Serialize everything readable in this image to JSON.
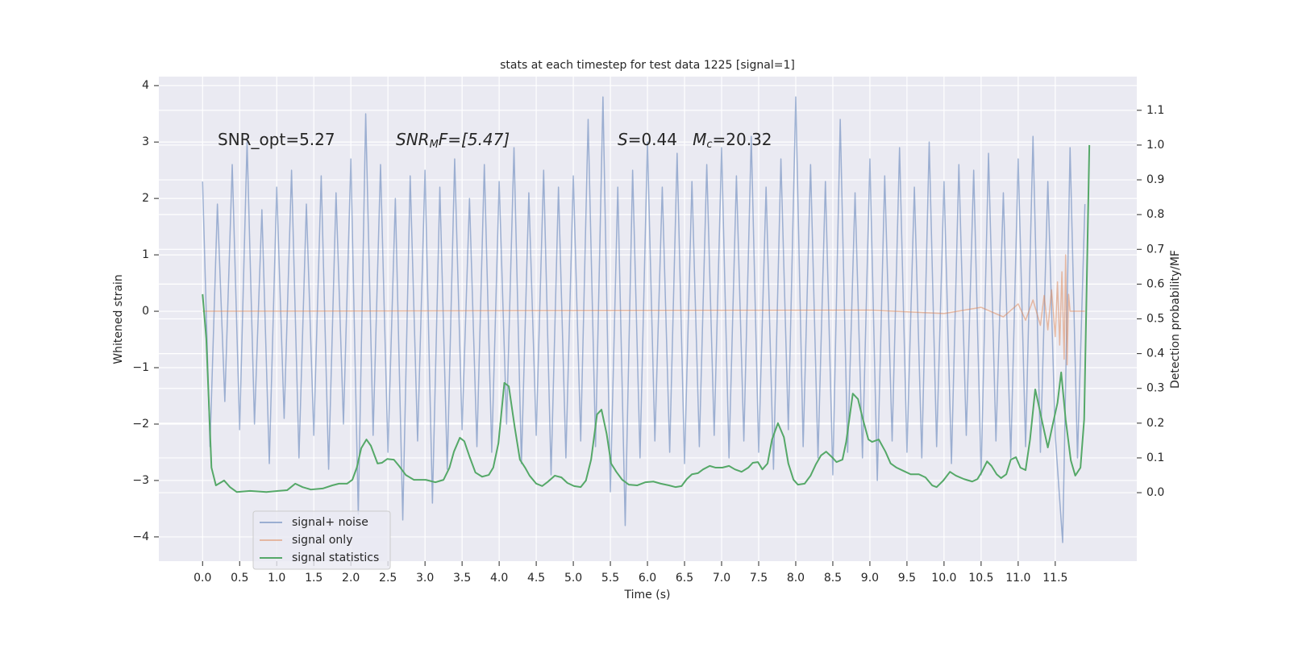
{
  "chart_data": {
    "type": "line",
    "title": "stats at each timestep for test data 1225 [signal=1]",
    "x_label": "Time (s)",
    "y_label": "Whitened strain",
    "y2_label": "Detection probability/MF",
    "annotations": [
      [
        "SNR_opt=5.27"
      ],
      [
        "SNR",
        "M",
        "F=[5.47]"
      ],
      [
        "S",
        "=0.44   ",
        "M",
        "c",
        "=20.32"
      ]
    ],
    "grid": true,
    "legend": "lower left",
    "xlim": [
      -0.59,
      12.6
    ],
    "ylim": [
      -4.43,
      4.16
    ],
    "y2lim": [
      -0.197,
      1.197
    ],
    "xticks": [
      {
        "value": 0,
        "label": "0.0"
      },
      0.5,
      {
        "value": 1,
        "label": "1.0"
      },
      1.5,
      {
        "value": 2,
        "label": "2.0"
      },
      2.5,
      {
        "value": 3,
        "label": "3.0"
      },
      3.5,
      {
        "value": 4,
        "label": "4.0"
      },
      4.5,
      {
        "value": 5,
        "label": "5.0"
      },
      5.5,
      {
        "value": 6,
        "label": "6.0"
      },
      6.5,
      {
        "value": 7,
        "label": "7.0"
      },
      7.5,
      {
        "value": 8,
        "label": "8.0"
      },
      8.5,
      {
        "value": 9,
        "label": "9.0"
      },
      9.5,
      {
        "value": 10,
        "label": "10.0"
      },
      10.5,
      {
        "value": 11,
        "label": "11.0"
      },
      11.5
    ],
    "yticks": [
      {
        "value": -4,
        "label": "−4"
      },
      {
        "value": -3,
        "label": "−3"
      },
      {
        "value": -2,
        "label": "−2"
      },
      {
        "value": -1,
        "label": "−1"
      },
      0,
      1,
      2,
      3,
      4
    ],
    "y2ticks": [
      {
        "value": 0,
        "label": "0.0"
      },
      0.1,
      0.2,
      0.3,
      0.4,
      0.5,
      0.6,
      0.7,
      0.8,
      0.9,
      {
        "value": 1,
        "label": "1.0"
      },
      1.1
    ],
    "series": [
      {
        "name": "signal+ noise",
        "color": "#4c72b0",
        "opacity": 0.5,
        "x": [
          0,
          0.1,
          0.2,
          0.3,
          0.4,
          0.5,
          0.6,
          0.7,
          0.8,
          0.9,
          1,
          1.1,
          1.2,
          1.3,
          1.4,
          1.5,
          1.6,
          1.7,
          1.8,
          1.9,
          2,
          2.1,
          2.2,
          2.3,
          2.4,
          2.5,
          2.6,
          2.7,
          2.8,
          2.9,
          3,
          3.1,
          3.2,
          3.3,
          3.4,
          3.5,
          3.6,
          3.7,
          3.8,
          3.9,
          4,
          4.1,
          4.2,
          4.3,
          4.4,
          4.5,
          4.6,
          4.7,
          4.8,
          4.9,
          5,
          5.1,
          5.2,
          5.3,
          5.4,
          5.5,
          5.6,
          5.7,
          5.8,
          5.9,
          6,
          6.1,
          6.2,
          6.3,
          6.4,
          6.5,
          6.6,
          6.7,
          6.8,
          6.9,
          7,
          7.1,
          7.2,
          7.3,
          7.4,
          7.5,
          7.6,
          7.7,
          7.8,
          7.9,
          8,
          8.1,
          8.2,
          8.3,
          8.4,
          8.5,
          8.6,
          8.7,
          8.8,
          8.9,
          9,
          9.1,
          9.2,
          9.3,
          9.4,
          9.5,
          9.6,
          9.7,
          9.8,
          9.9,
          10,
          10.1,
          10.2,
          10.3,
          10.4,
          10.5,
          10.6,
          10.7,
          10.8,
          10.9,
          11,
          11.1,
          11.2,
          11.3,
          11.4,
          11.5,
          11.6,
          11.7,
          11.8,
          11.9
        ],
        "values": [
          2.3,
          -2.4,
          1.9,
          -1.6,
          2.6,
          -2.1,
          3.0,
          -2.0,
          1.8,
          -2.7,
          2.2,
          -1.9,
          2.5,
          -2.6,
          1.9,
          -2.2,
          2.4,
          -2.8,
          2.1,
          -2.0,
          2.7,
          -3.6,
          3.5,
          -2.2,
          2.6,
          -2.5,
          2.0,
          -3.7,
          2.4,
          -2.3,
          2.5,
          -3.4,
          2.2,
          -2.8,
          2.7,
          -2.1,
          2.0,
          -2.4,
          2.6,
          -2.5,
          2.3,
          -2.0,
          2.9,
          -2.7,
          2.1,
          -2.2,
          2.5,
          -2.9,
          2.2,
          -2.6,
          2.4,
          -2.3,
          3.4,
          -2.4,
          3.8,
          -3.2,
          2.2,
          -3.8,
          2.5,
          -2.6,
          3.0,
          -2.3,
          2.2,
          -2.5,
          2.8,
          -2.7,
          2.3,
          -2.4,
          2.6,
          -2.2,
          2.9,
          -2.6,
          2.4,
          -2.3,
          3.1,
          -2.5,
          2.2,
          -2.8,
          2.7,
          -2.1,
          3.8,
          -2.4,
          2.6,
          -2.6,
          2.3,
          -2.9,
          3.4,
          -2.5,
          2.1,
          -2.6,
          2.7,
          -3.0,
          2.4,
          -2.3,
          2.9,
          -2.5,
          2.2,
          -2.6,
          3.0,
          -2.4,
          2.3,
          -2.7,
          2.6,
          -2.2,
          2.5,
          -2.9,
          2.8,
          -2.3,
          2.1,
          -2.6,
          2.7,
          -2.4,
          3.1,
          -2.5,
          2.3,
          -2.2,
          -4.1,
          2.9,
          -2.6,
          1.9
        ]
      },
      {
        "name": "signal only",
        "color": "#dd8452",
        "opacity": 0.5,
        "x": [
          0,
          9.0,
          10.0,
          10.5,
          10.8,
          11.0,
          11.1,
          11.2,
          11.3,
          11.35,
          11.4,
          11.45,
          11.5,
          11.53,
          11.56,
          11.59,
          11.62,
          11.64,
          11.66,
          11.68,
          11.7,
          11.9
        ],
        "values": [
          0,
          0.02,
          -0.04,
          0.07,
          -0.1,
          0.13,
          -0.16,
          0.2,
          -0.25,
          0.28,
          -0.33,
          0.38,
          -0.45,
          0.52,
          -0.6,
          0.7,
          -0.85,
          1.0,
          -0.95,
          0.3,
          0,
          0
        ]
      },
      {
        "name": "signal statistics",
        "color": "#55a868",
        "opacity": 1,
        "axis": "y2",
        "x": [
          0,
          0.05,
          0.12,
          0.18,
          0.29,
          0.37,
          0.46,
          0.64,
          0.86,
          1.02,
          1.14,
          1.25,
          1.35,
          1.46,
          1.62,
          1.75,
          1.84,
          1.95,
          2.02,
          2.08,
          2.14,
          2.21,
          2.27,
          2.36,
          2.42,
          2.49,
          2.58,
          2.65,
          2.74,
          2.85,
          3.01,
          3.14,
          3.25,
          3.33,
          3.39,
          3.47,
          3.53,
          3.6,
          3.68,
          3.77,
          3.86,
          3.92,
          3.99,
          4.07,
          4.13,
          4.21,
          4.28,
          4.35,
          4.41,
          4.5,
          4.58,
          4.66,
          4.75,
          4.84,
          4.92,
          5.01,
          5.1,
          5.17,
          5.24,
          5.32,
          5.38,
          5.45,
          5.51,
          5.58,
          5.66,
          5.75,
          5.86,
          5.97,
          6.08,
          6.18,
          6.29,
          6.38,
          6.46,
          6.53,
          6.6,
          6.68,
          6.75,
          6.84,
          6.92,
          7.01,
          7.1,
          7.18,
          7.27,
          7.36,
          7.42,
          7.49,
          7.55,
          7.62,
          7.68,
          7.76,
          7.84,
          7.9,
          7.97,
          8.03,
          8.12,
          8.2,
          8.27,
          8.34,
          8.41,
          8.49,
          8.55,
          8.63,
          8.68,
          8.77,
          8.84,
          8.9,
          8.98,
          9.03,
          9.12,
          9.21,
          9.28,
          9.36,
          9.45,
          9.55,
          9.66,
          9.75,
          9.84,
          9.9,
          9.99,
          10.08,
          10.16,
          10.27,
          10.38,
          10.45,
          10.51,
          10.58,
          10.64,
          10.71,
          10.77,
          10.84,
          10.9,
          10.97,
          11.03,
          11.1,
          11.16,
          11.23,
          11.27,
          11.34,
          11.4,
          11.47,
          11.53,
          11.58,
          11.64,
          11.71,
          11.77,
          11.84,
          11.89,
          11.96
        ],
        "values": [
          0.571,
          0.443,
          0.072,
          0.021,
          0.035,
          0.016,
          0.002,
          0.005,
          0.002,
          0.005,
          0.007,
          0.026,
          0.016,
          0.009,
          0.012,
          0.021,
          0.026,
          0.026,
          0.037,
          0.072,
          0.128,
          0.153,
          0.135,
          0.084,
          0.086,
          0.097,
          0.095,
          0.077,
          0.051,
          0.037,
          0.037,
          0.03,
          0.037,
          0.072,
          0.118,
          0.158,
          0.148,
          0.104,
          0.058,
          0.046,
          0.051,
          0.072,
          0.142,
          0.316,
          0.306,
          0.188,
          0.095,
          0.072,
          0.049,
          0.026,
          0.019,
          0.032,
          0.049,
          0.044,
          0.028,
          0.019,
          0.016,
          0.035,
          0.095,
          0.225,
          0.239,
          0.169,
          0.084,
          0.06,
          0.037,
          0.023,
          0.021,
          0.03,
          0.032,
          0.026,
          0.021,
          0.016,
          0.019,
          0.039,
          0.053,
          0.056,
          0.067,
          0.077,
          0.072,
          0.072,
          0.077,
          0.067,
          0.06,
          0.072,
          0.086,
          0.088,
          0.067,
          0.084,
          0.153,
          0.2,
          0.16,
          0.084,
          0.037,
          0.023,
          0.026,
          0.049,
          0.081,
          0.107,
          0.118,
          0.102,
          0.088,
          0.095,
          0.146,
          0.285,
          0.269,
          0.216,
          0.153,
          0.146,
          0.153,
          0.118,
          0.084,
          0.072,
          0.063,
          0.053,
          0.053,
          0.044,
          0.021,
          0.016,
          0.035,
          0.06,
          0.049,
          0.039,
          0.032,
          0.039,
          0.06,
          0.09,
          0.077,
          0.053,
          0.042,
          0.053,
          0.095,
          0.102,
          0.072,
          0.065,
          0.153,
          0.297,
          0.258,
          0.188,
          0.13,
          0.2,
          0.258,
          0.346,
          0.211,
          0.093,
          0.049,
          0.072,
          0.211,
          1.0
        ]
      }
    ]
  }
}
